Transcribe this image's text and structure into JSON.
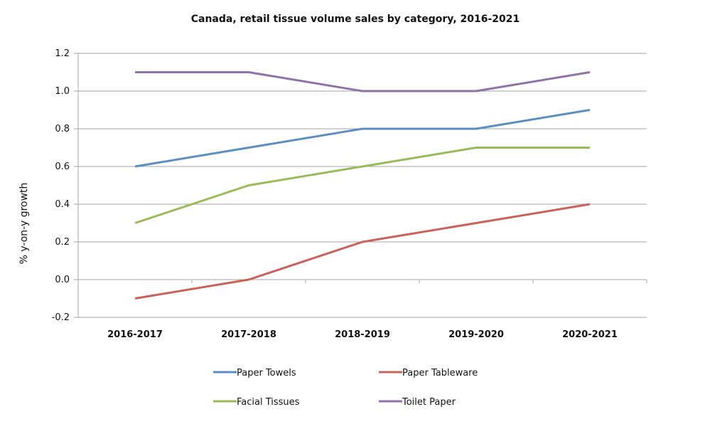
{
  "chart_data": {
    "type": "line",
    "title": "Canada, retail tissue volume sales by category, 2016-2021",
    "xlabel": "",
    "ylabel": "% y-on-y growth",
    "categories": [
      "2016-2017",
      "2017-2018",
      "2018-2019",
      "2019-2020",
      "2020-2021"
    ],
    "ylim": [
      -0.2,
      1.2
    ],
    "yticks": [
      "1.2",
      "1.0",
      "0.8",
      "0.6",
      "0.4",
      "0.2",
      "0.0",
      "-0.2"
    ],
    "ytick_values": [
      1.2,
      1.0,
      0.8,
      0.6,
      0.4,
      0.2,
      0.0,
      -0.2
    ],
    "grid": true,
    "legend_position": "bottom",
    "series": [
      {
        "name": "Paper Towels",
        "color": "#5b8fc2",
        "values": [
          0.6,
          0.7,
          0.8,
          0.8,
          0.9
        ]
      },
      {
        "name": "Paper Tableware",
        "color": "#c8625a",
        "values": [
          -0.1,
          0.0,
          0.2,
          0.3,
          0.4
        ]
      },
      {
        "name": "Facial Tissues",
        "color": "#9bbb59",
        "values": [
          0.3,
          0.5,
          0.6,
          0.7,
          0.7
        ]
      },
      {
        "name": "Toilet Paper",
        "color": "#8e72a8",
        "values": [
          1.1,
          1.1,
          1.0,
          1.0,
          1.1
        ]
      }
    ]
  }
}
